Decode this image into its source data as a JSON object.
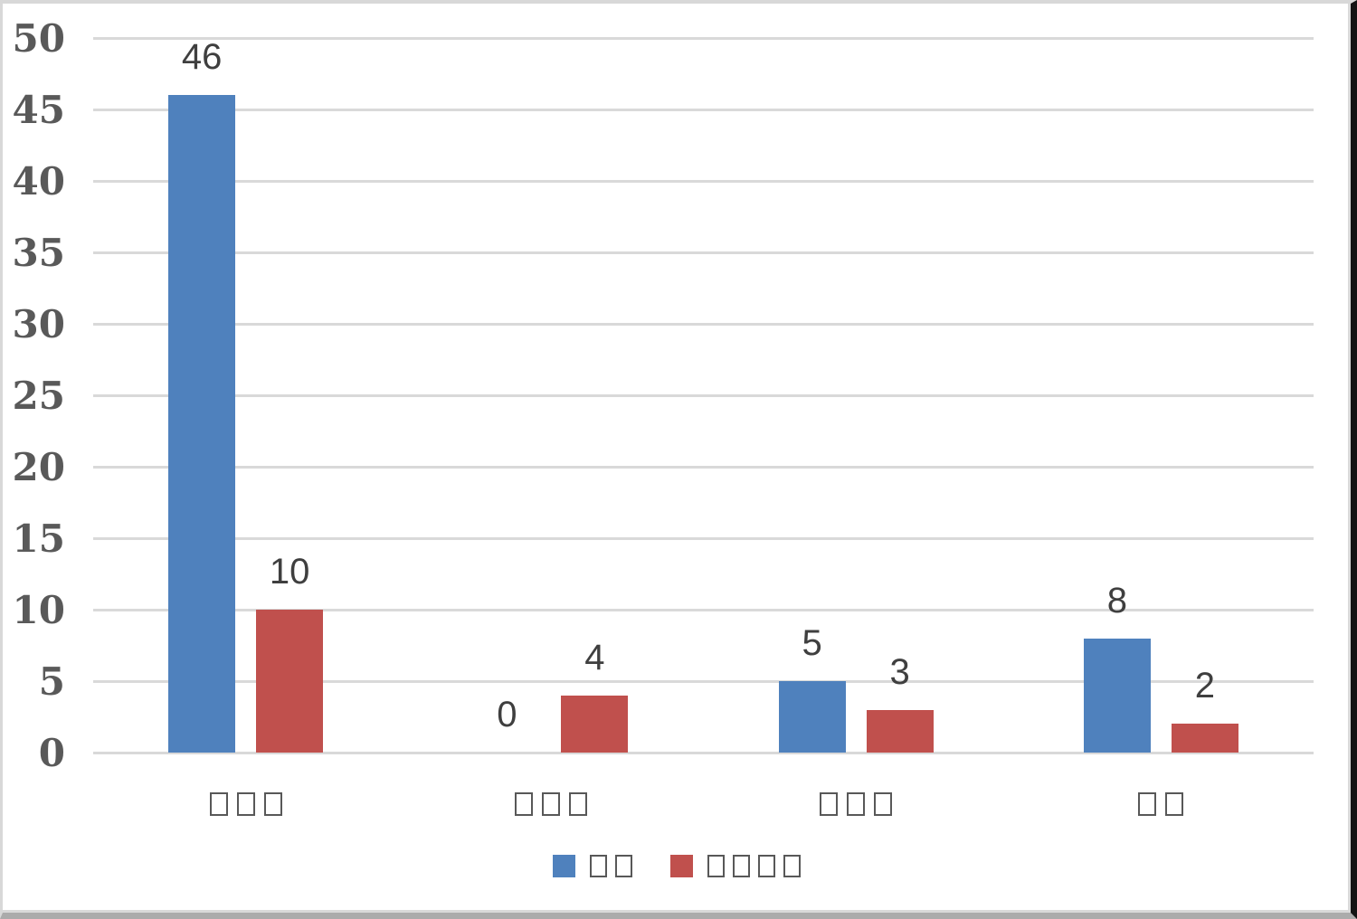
{
  "chart_data": {
    "type": "bar",
    "title": "",
    "xlabel": "",
    "ylabel": "",
    "categories": [
      "□□□",
      "□□□",
      "□□□",
      "□□"
    ],
    "categories_note": "labels rendered as missing-glyph (tofu) boxes",
    "series": [
      {
        "name": "□□",
        "color": "#4F81BD",
        "values": [
          46,
          0,
          5,
          8
        ]
      },
      {
        "name": "□□□□",
        "color": "#C0504D",
        "values": [
          10,
          4,
          3,
          2
        ]
      }
    ],
    "value_labels": [
      [
        "46",
        "0",
        "5",
        "8"
      ],
      [
        "10",
        "4",
        "3",
        "2"
      ]
    ],
    "ylim": [
      0,
      50
    ],
    "ytick_step": 5,
    "ytick_labels": [
      "0",
      "5",
      "10",
      "15",
      "20",
      "25",
      "30",
      "35",
      "40",
      "45",
      "50"
    ],
    "grid": true,
    "legend_position": "bottom"
  },
  "colors": {
    "gridline": "#d9d9d9",
    "axis_tick_text": "#595959",
    "value_label_text": "#3f3f3f",
    "tofu_stroke": "#585858",
    "series1": "#4F81BD",
    "series2": "#C0504D"
  }
}
